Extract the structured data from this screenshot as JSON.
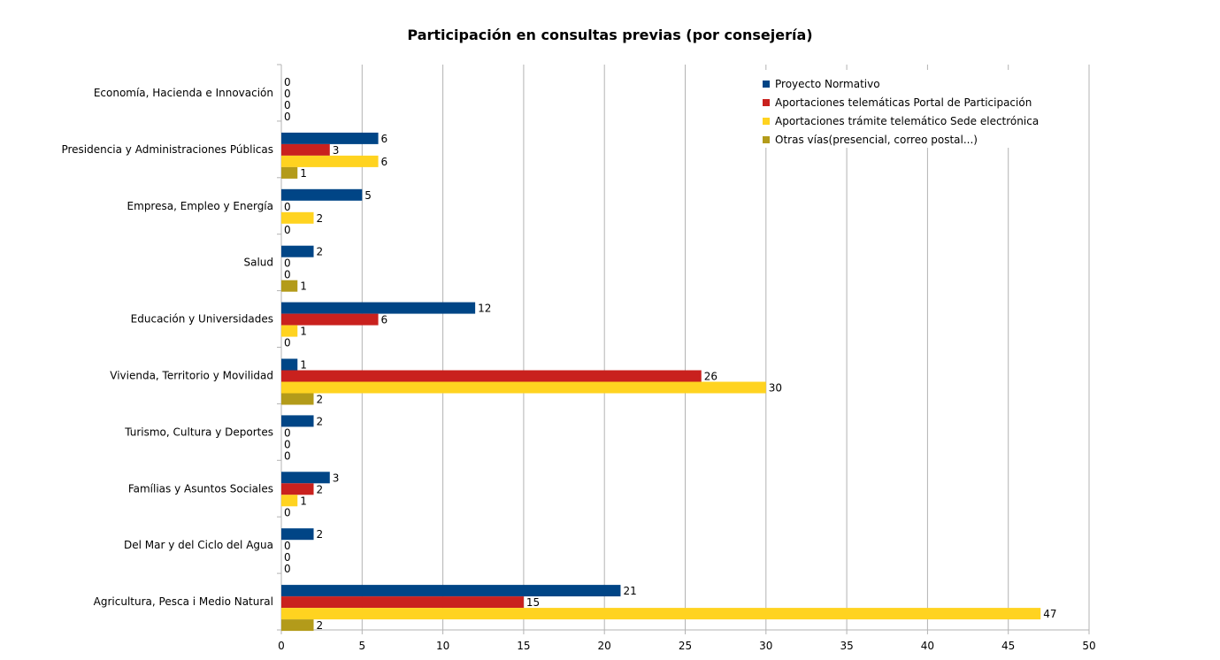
{
  "chart_data": {
    "type": "bar",
    "orientation": "horizontal",
    "title": "Participación en consultas previas (por consejería)",
    "xlabel": "",
    "ylabel": "",
    "xlim": [
      0,
      50
    ],
    "xticks": [
      0,
      5,
      10,
      15,
      20,
      25,
      30,
      35,
      40,
      45,
      50
    ],
    "grid": "vertical",
    "legend_position": "top-right",
    "categories": [
      "Economía, Hacienda e Innovación",
      "Presidencia y Administraciones Públicas",
      "Empresa, Empleo y Energía",
      "Salud",
      "Educación y Universidades",
      "Vivienda, Territorio y Movilidad",
      "Turismo, Cultura y Deportes",
      "Famílias y Asuntos Sociales",
      "Del Mar y del Ciclo del Agua",
      "Agricultura, Pesca i Medio Natural"
    ],
    "series": [
      {
        "name": "Proyecto Normativo",
        "color": "#004586",
        "values": [
          0,
          6,
          5,
          2,
          12,
          1,
          2,
          3,
          2,
          21
        ]
      },
      {
        "name": "Aportaciones telemáticas Portal de Participación",
        "color": "#c9211e",
        "values": [
          0,
          3,
          0,
          0,
          6,
          26,
          0,
          2,
          0,
          15
        ]
      },
      {
        "name": "Aportaciones trámite telemático Sede electrónica",
        "color": "#ffd320",
        "values": [
          0,
          6,
          2,
          0,
          1,
          30,
          0,
          1,
          0,
          47
        ]
      },
      {
        "name": "Otras vías(presencial, correo postal...)",
        "color": "#b39b1a",
        "values": [
          0,
          1,
          0,
          1,
          0,
          2,
          0,
          0,
          0,
          2
        ]
      }
    ]
  }
}
